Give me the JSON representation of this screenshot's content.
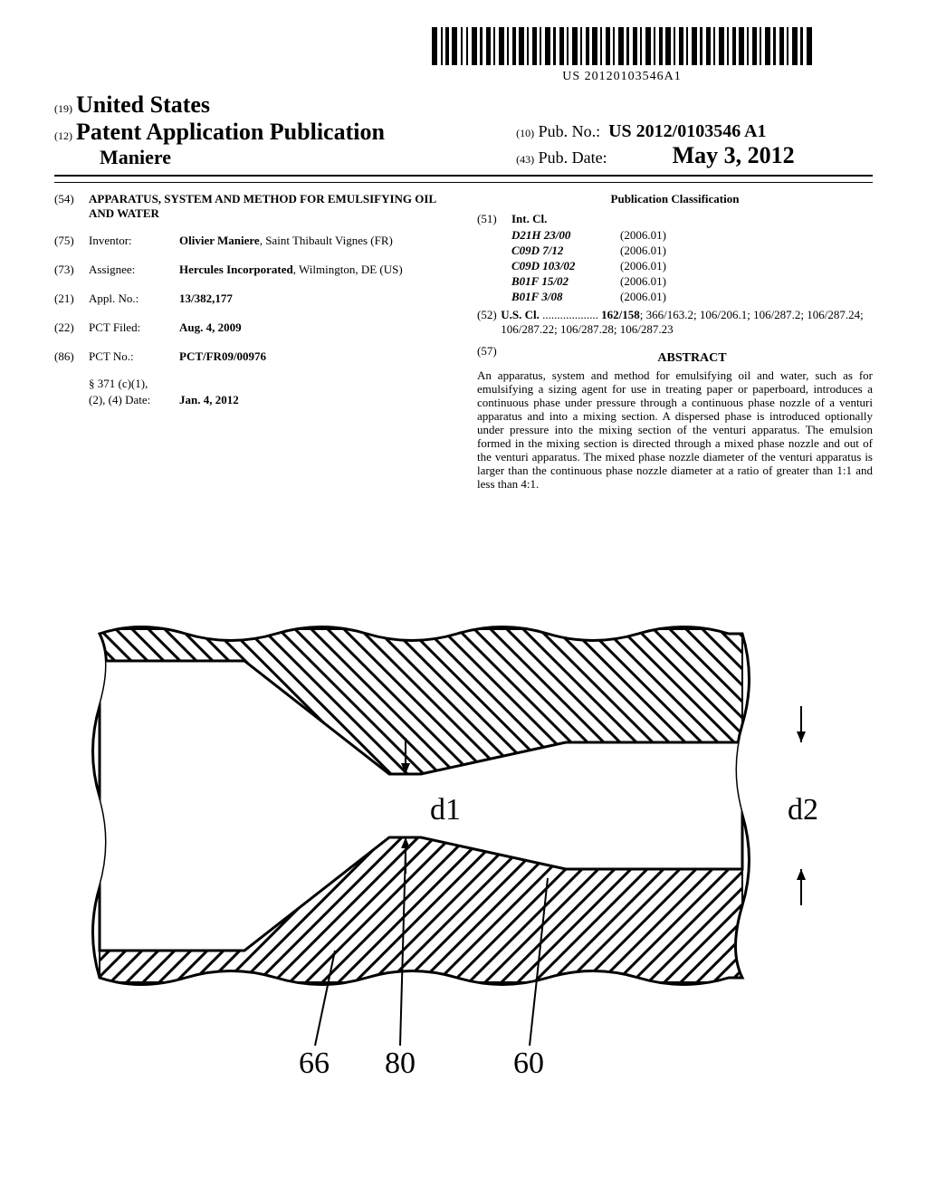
{
  "barcode_text": "US 20120103546A1",
  "header": {
    "country_code": "(19)",
    "country": "United States",
    "pub_type_code": "(12)",
    "pub_type": "Patent Application Publication",
    "author": "Maniere",
    "pub_no_code": "(10)",
    "pub_no_label": "Pub. No.:",
    "pub_no": "US 2012/0103546 A1",
    "pub_date_code": "(43)",
    "pub_date_label": "Pub. Date:",
    "pub_date": "May 3, 2012"
  },
  "left_col": {
    "title_code": "(54)",
    "title": "APPARATUS, SYSTEM AND METHOD FOR EMULSIFYING OIL AND WATER",
    "inventor_code": "(75)",
    "inventor_label": "Inventor:",
    "inventor_name": "Olivier Maniere",
    "inventor_loc": ", Saint Thibault Vignes (FR)",
    "assignee_code": "(73)",
    "assignee_label": "Assignee:",
    "assignee_name": "Hercules Incorporated",
    "assignee_loc": ", Wilmington, DE (US)",
    "appl_code": "(21)",
    "appl_label": "Appl. No.:",
    "appl_no": "13/382,177",
    "pct_filed_code": "(22)",
    "pct_filed_label": "PCT Filed:",
    "pct_filed": "Aug. 4, 2009",
    "pct_no_code": "(86)",
    "pct_no_label": "PCT No.:",
    "pct_no": "PCT/FR09/00976",
    "sec371_label": "§ 371 (c)(1),",
    "sec371_date_label": "(2), (4) Date:",
    "sec371_date": "Jan. 4, 2012"
  },
  "right_col": {
    "classification_heading": "Publication Classification",
    "intcl_code": "(51)",
    "intcl_label": "Int. Cl.",
    "intcl": [
      {
        "code": "D21H 23/00",
        "ver": "(2006.01)"
      },
      {
        "code": "C09D 7/12",
        "ver": "(2006.01)"
      },
      {
        "code": "C09D 103/02",
        "ver": "(2006.01)"
      },
      {
        "code": "B01F 15/02",
        "ver": "(2006.01)"
      },
      {
        "code": "B01F 3/08",
        "ver": "(2006.01)"
      }
    ],
    "uscl_code": "(52)",
    "uscl_label": "U.S. Cl.",
    "uscl_lead": "162/158",
    "uscl_rest": "; 366/163.2; 106/206.1; 106/287.2; 106/287.24; 106/287.22; 106/287.28; 106/287.23",
    "abstract_code": "(57)",
    "abstract_heading": "ABSTRACT",
    "abstract": "An apparatus, system and method for emulsifying oil and water, such as for emulsifying a sizing agent for use in treating paper or paperboard, introduces a continuous phase under pressure through a continuous phase nozzle of a venturi apparatus and into a mixing section. A dispersed phase is introduced optionally under pressure into the mixing section of the venturi apparatus. The emulsion formed in the mixing section is directed through a mixed phase nozzle and out of the venturi apparatus. The mixed phase nozzle diameter of the venturi apparatus is larger than the continuous phase nozzle diameter at a ratio of greater than 1:1 and less than 4:1."
  },
  "figure": {
    "d1": "d1",
    "d2": "d2",
    "ref66": "66",
    "ref80": "80",
    "ref60": "60",
    "frame_color": "#000000",
    "hatch_color": "#000000",
    "bg_color": "#ffffff",
    "stroke_width": 2
  }
}
